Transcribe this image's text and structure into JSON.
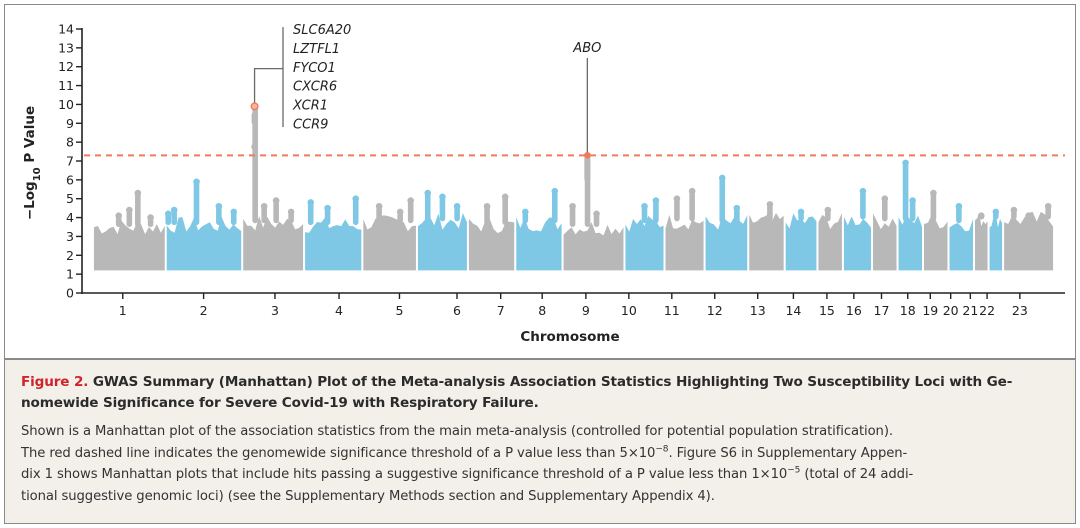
{
  "chart_data": {
    "type": "scatter",
    "subtype": "manhattan",
    "xlabel": "Chromosome",
    "ylabel": "−Log10 P Value",
    "ylabel_parts": {
      "prefix": "−Log",
      "sub": "10",
      "suffix": " P Value"
    },
    "ylim": [
      0,
      14
    ],
    "yticks": [
      0,
      1,
      2,
      3,
      4,
      5,
      6,
      7,
      8,
      9,
      10,
      11,
      12,
      13,
      14
    ],
    "significance_threshold": {
      "value": 7.3,
      "label": "P < 5×10⁻⁸",
      "color": "#f07a5a",
      "style": "dashed"
    },
    "colors": {
      "gray": "#b8b8b8",
      "blue": "#7ec8e6",
      "highlight": "#f07a5a",
      "axis": "#222222",
      "leader": "#6a6a6a"
    },
    "chromosomes": [
      {
        "label": "1",
        "color": "gray",
        "span": [
          0,
          1.0
        ],
        "baseline": 1.2,
        "body": 3.5,
        "peaks": [
          [
            0.35,
            4.1
          ],
          [
            0.5,
            4.4
          ],
          [
            0.62,
            5.3
          ],
          [
            0.8,
            4.0
          ]
        ]
      },
      {
        "label": "2",
        "color": "blue",
        "span": [
          1.0,
          2.05
        ],
        "baseline": 1.2,
        "body": 3.6,
        "peaks": [
          [
            0.02,
            4.2
          ],
          [
            0.1,
            4.4
          ],
          [
            0.4,
            5.9
          ],
          [
            0.7,
            4.6
          ],
          [
            0.9,
            4.3
          ]
        ],
        "pre_gray": true
      },
      {
        "label": "3",
        "color": "gray",
        "span": [
          2.05,
          2.9
        ],
        "baseline": 1.2,
        "body": 3.7,
        "peaks": [
          [
            0.2,
            9.9
          ],
          [
            0.35,
            4.6
          ],
          [
            0.55,
            4.9
          ],
          [
            0.8,
            4.3
          ]
        ]
      },
      {
        "label": "4",
        "color": "blue",
        "span": [
          2.9,
          3.7
        ],
        "baseline": 1.2,
        "body": 3.6,
        "peaks": [
          [
            0.1,
            4.8
          ],
          [
            0.4,
            4.5
          ],
          [
            0.9,
            5.0
          ]
        ]
      },
      {
        "label": "5",
        "color": "gray",
        "span": [
          3.7,
          4.45
        ],
        "baseline": 1.2,
        "body": 3.7,
        "peaks": [
          [
            0.3,
            4.6
          ],
          [
            0.7,
            4.3
          ],
          [
            0.9,
            4.9
          ]
        ]
      },
      {
        "label": "6",
        "color": "blue",
        "span": [
          4.45,
          5.15
        ],
        "baseline": 1.2,
        "body": 3.8,
        "peaks": [
          [
            0.2,
            5.3
          ],
          [
            0.5,
            5.1
          ],
          [
            0.8,
            4.6
          ]
        ]
      },
      {
        "label": "7",
        "color": "gray",
        "span": [
          5.15,
          5.8
        ],
        "baseline": 1.2,
        "body": 3.6,
        "peaks": [
          [
            0.4,
            4.6
          ],
          [
            0.8,
            5.1
          ]
        ]
      },
      {
        "label": "8",
        "color": "blue",
        "span": [
          5.8,
          6.45
        ],
        "baseline": 1.2,
        "body": 3.7,
        "peaks": [
          [
            0.2,
            4.3
          ],
          [
            0.85,
            5.4
          ]
        ]
      },
      {
        "label": "9",
        "color": "gray",
        "span": [
          6.45,
          7.3
        ],
        "baseline": 1.2,
        "body": 3.5,
        "peaks": [
          [
            0.15,
            4.6
          ],
          [
            0.4,
            7.3
          ],
          [
            0.55,
            4.2
          ]
        ]
      },
      {
        "label": "10",
        "color": "blue",
        "span": [
          7.3,
          7.85
        ],
        "baseline": 1.2,
        "body": 3.7,
        "peaks": [
          [
            0.5,
            4.6
          ],
          [
            0.8,
            4.9
          ]
        ]
      },
      {
        "label": "11",
        "color": "gray",
        "span": [
          7.85,
          8.4
        ],
        "baseline": 1.2,
        "body": 3.8,
        "peaks": [
          [
            0.3,
            5.0
          ],
          [
            0.7,
            5.4
          ]
        ]
      },
      {
        "label": "12",
        "color": "blue",
        "span": [
          8.4,
          9.0
        ],
        "baseline": 1.2,
        "body": 3.7,
        "peaks": [
          [
            0.4,
            6.1
          ],
          [
            0.75,
            4.5
          ]
        ]
      },
      {
        "label": "13",
        "color": "gray",
        "span": [
          9.0,
          9.5
        ],
        "baseline": 1.2,
        "body": 3.8,
        "peaks": [
          [
            0.6,
            4.7
          ]
        ]
      },
      {
        "label": "14",
        "color": "blue",
        "span": [
          9.5,
          9.95
        ],
        "baseline": 1.2,
        "body": 3.8,
        "peaks": [
          [
            0.5,
            4.3
          ]
        ]
      },
      {
        "label": "15",
        "color": "gray",
        "span": [
          9.95,
          10.3
        ],
        "baseline": 1.2,
        "body": 3.8,
        "peaks": [
          [
            0.4,
            4.4
          ]
        ]
      },
      {
        "label": "16",
        "color": "blue",
        "span": [
          10.3,
          10.7
        ],
        "baseline": 1.2,
        "body": 3.9,
        "peaks": [
          [
            0.7,
            5.4
          ]
        ]
      },
      {
        "label": "17",
        "color": "gray",
        "span": [
          10.7,
          11.05
        ],
        "baseline": 1.2,
        "body": 3.8,
        "peaks": [
          [
            0.5,
            5.0
          ]
        ]
      },
      {
        "label": "18",
        "color": "blue",
        "span": [
          11.05,
          11.4
        ],
        "baseline": 1.2,
        "body": 3.8,
        "peaks": [
          [
            0.3,
            6.9
          ],
          [
            0.6,
            4.9
          ]
        ]
      },
      {
        "label": "19",
        "color": "gray",
        "span": [
          11.4,
          11.75
        ],
        "baseline": 1.2,
        "body": 3.8,
        "peaks": [
          [
            0.4,
            5.3
          ]
        ]
      },
      {
        "label": "20",
        "color": "blue",
        "span": [
          11.75,
          12.1
        ],
        "baseline": 1.2,
        "body": 3.7,
        "peaks": [
          [
            0.4,
            4.6
          ]
        ]
      },
      {
        "label": "21",
        "color": "gray",
        "span": [
          12.1,
          12.3
        ],
        "baseline": 1.2,
        "body": 3.9,
        "peaks": [
          [
            0.5,
            4.1
          ]
        ]
      },
      {
        "label": "22",
        "color": "blue",
        "span": [
          12.3,
          12.5
        ],
        "baseline": 1.2,
        "body": 3.9,
        "peaks": [
          [
            0.5,
            4.3
          ]
        ]
      },
      {
        "label": "23",
        "color": "gray",
        "span": [
          12.5,
          13.2
        ],
        "baseline": 1.2,
        "body": 3.9,
        "peaks": [
          [
            0.2,
            4.4
          ],
          [
            0.5,
            4.1
          ],
          [
            0.9,
            4.6
          ]
        ]
      }
    ],
    "xticks": [
      {
        "label": "1",
        "pos": 0.41
      },
      {
        "label": "2",
        "pos": 1.52
      },
      {
        "label": "3",
        "pos": 2.5
      },
      {
        "label": "4",
        "pos": 3.38
      },
      {
        "label": "5",
        "pos": 4.21
      },
      {
        "label": "6",
        "pos": 5.0
      },
      {
        "label": "7",
        "pos": 5.6
      },
      {
        "label": "8",
        "pos": 6.17
      },
      {
        "label": "9",
        "pos": 6.77
      },
      {
        "label": "10",
        "pos": 7.36
      },
      {
        "label": "11",
        "pos": 7.95
      },
      {
        "label": "12",
        "pos": 8.54
      },
      {
        "label": "13",
        "pos": 9.13
      },
      {
        "label": "14",
        "pos": 9.62
      },
      {
        "label": "15",
        "pos": 10.08
      },
      {
        "label": "16",
        "pos": 10.45
      },
      {
        "label": "17",
        "pos": 10.83
      },
      {
        "label": "18",
        "pos": 11.19
      },
      {
        "label": "19",
        "pos": 11.5
      },
      {
        "label": "20",
        "pos": 11.78
      },
      {
        "label": "21",
        "pos": 12.05
      },
      {
        "label": "22",
        "pos": 12.28
      },
      {
        "label": "23",
        "pos": 12.73
      }
    ],
    "xlim": [
      -0.15,
      13.35
    ],
    "annotations": [
      {
        "locus": "chr3",
        "x": 2.22,
        "y": 9.9,
        "genes": [
          "SLC6A20",
          "LZTFL1",
          "FYCO1",
          "CXCR6",
          "XCR1",
          "CCR9"
        ]
      },
      {
        "locus": "chr9",
        "x": 6.79,
        "y": 7.3,
        "genes": [
          "ABO"
        ]
      }
    ]
  },
  "caption": {
    "figure_label": "Figure 2.",
    "title": "GWAS Summary (Manhattan) Plot of the Meta-analysis Association Statistics Highlighting Two Susceptibility Loci with Ge-nomewide Significance for Severe Covid-19 with Respiratory Failure.",
    "title_line1": "GWAS Summary (Manhattan) Plot of the Meta-analysis Association Statistics Highlighting Two Susceptibility Loci with Ge-",
    "title_line2": "nomewide Significance for Severe Covid-19 with Respiratory Failure.",
    "body_line1": "Shown is a Manhattan plot of the association statistics from the main meta-analysis (controlled for potential population stratification).",
    "body_line2a": "The red dashed line indicates the genomewide significance threshold of a P value less than 5×10",
    "body_line2_exp": "−8",
    "body_line2b": ". Figure S6 in Supplementary Appen-",
    "body_line3a": "dix 1 shows Manhattan plots that include hits passing a suggestive significance threshold of a P value less than 1×10",
    "body_line3_exp": "−5",
    "body_line3b": " (total of 24 addi-",
    "body_line4": "tional suggestive genomic loci) (see the Supplementary Methods section and Supplementary Appendix 4)."
  }
}
